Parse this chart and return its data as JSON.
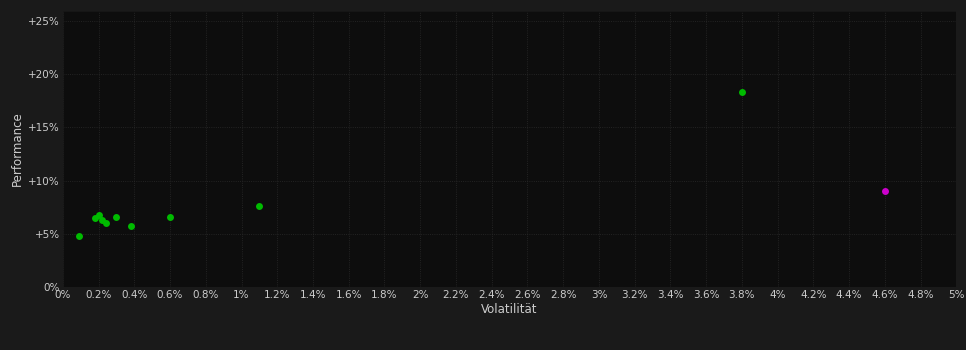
{
  "background_color": "#1a1a1a",
  "plot_bg_color": "#0d0d0d",
  "grid_color": "#2a2a2a",
  "text_color": "#cccccc",
  "xlabel": "Volatilität",
  "ylabel": "Performance",
  "xlim": [
    0,
    0.05
  ],
  "ylim": [
    0,
    0.26
  ],
  "xtick_step": 0.002,
  "ytick_values": [
    0,
    0.05,
    0.1,
    0.15,
    0.2,
    0.25
  ],
  "ytick_labels": [
    "0%",
    "+5%",
    "+10%",
    "+15%",
    "+20%",
    "+25%"
  ],
  "green_points": [
    [
      0.0009,
      0.048
    ],
    [
      0.0018,
      0.065
    ],
    [
      0.002,
      0.068
    ],
    [
      0.0022,
      0.063
    ],
    [
      0.0024,
      0.06
    ],
    [
      0.003,
      0.066
    ],
    [
      0.0038,
      0.057
    ],
    [
      0.006,
      0.066
    ],
    [
      0.011,
      0.076
    ],
    [
      0.038,
      0.183
    ]
  ],
  "magenta_points": [
    [
      0.046,
      0.09
    ]
  ],
  "green_color": "#00bb00",
  "magenta_color": "#cc00cc",
  "marker_size": 5,
  "font_size_ticks": 7.5,
  "font_size_label": 8.5
}
